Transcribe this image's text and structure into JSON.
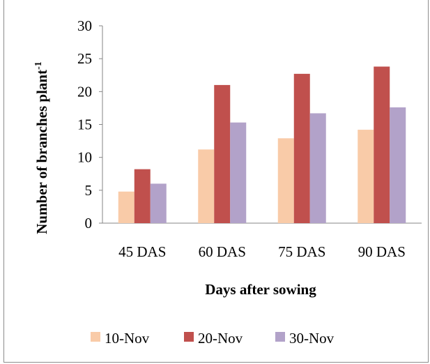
{
  "chart_data": {
    "type": "bar",
    "categories": [
      "45 DAS",
      "60 DAS",
      "75 DAS",
      "90 DAS"
    ],
    "series": [
      {
        "name": "10-Nov",
        "values": [
          4.8,
          11.2,
          12.9,
          14.2
        ],
        "color": "#f9cba8"
      },
      {
        "name": "20-Nov",
        "values": [
          8.2,
          21.0,
          22.7,
          23.8
        ],
        "color": "#c0504d"
      },
      {
        "name": "30-Nov",
        "values": [
          6.0,
          15.3,
          16.7,
          17.6
        ],
        "color": "#b2a2c9"
      }
    ],
    "xlabel": "Days after sowing",
    "ylabel": "Number of branches plant",
    "ylabel_superscript": "-1",
    "ylim": [
      0,
      30
    ],
    "yticks": [
      "0",
      "5",
      "10",
      "15",
      "20",
      "25",
      "30"
    ],
    "grid": false,
    "legend_position": "bottom"
  }
}
